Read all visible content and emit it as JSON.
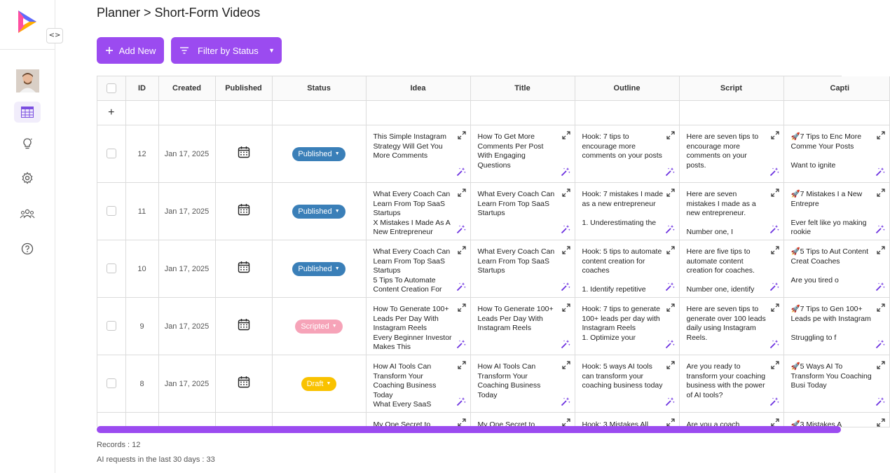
{
  "breadcrumb": "Planner > Short-Form Videos",
  "toolbar": {
    "add_label": "Add New",
    "filter_label": "Filter by Status"
  },
  "colors": {
    "accent": "#9b4bf0",
    "published": "#3a7fb8",
    "scripted": "#f6a3b8",
    "draft": "#f9c200"
  },
  "table": {
    "headers": [
      "ID",
      "Created",
      "Published",
      "Status",
      "Idea",
      "Title",
      "Outline",
      "Script",
      "Capti"
    ],
    "add_row_symbol": "+",
    "rows": [
      {
        "id": "12",
        "created": "Jan 17, 2025",
        "status": "Published",
        "idea": "This Simple Instagram Strategy Will Get You More Comments",
        "title": "How To Get More Comments Per Post With Engaging Questions",
        "outline": "Hook: 7 tips to encourage more comments on your posts",
        "script": "Here are seven tips to encourage more comments on your posts.",
        "caption": "🚀7 Tips to Enc More Comme Your Posts\n\nWant to ignite"
      },
      {
        "id": "11",
        "created": "Jan 17, 2025",
        "status": "Published",
        "idea": "What Every Coach Can Learn From Top SaaS Startups\nX Mistakes I Made As A New Entrepreneur",
        "title": "What Every Coach Can Learn From Top SaaS Startups",
        "outline": "Hook: 7 mistakes I made as a new entrepreneur\n\n1. Underestimating the",
        "script": "Here are seven mistakes I made as a new entrepreneur.\n\nNumber one, I",
        "caption": "🚀7 Mistakes I a New Entrepre\n\nEver felt like yo making rookie"
      },
      {
        "id": "10",
        "created": "Jan 17, 2025",
        "status": "Published",
        "idea": "What Every Coach Can Learn From Top SaaS Startups\n5 Tips To Automate Content Creation For",
        "title": "What Every Coach Can Learn From Top SaaS Startups",
        "outline": "Hook: 5 tips to automate content creation for coaches\n\n1. Identify repetitive",
        "script": "Here are five tips to automate content creation for coaches.\n\nNumber one, identify",
        "caption": "🚀5 Tips to Aut Content Creat Coaches\n\nAre you tired o"
      },
      {
        "id": "9",
        "created": "Jan 17, 2025",
        "status": "Scripted",
        "idea": "How To Generate 100+ Leads Per Day With Instagram Reels\nEvery Beginner Investor Makes This",
        "title": "How To Generate 100+ Leads Per Day With Instagram Reels",
        "outline": "Hook: 7 tips to generate 100+ leads per day with Instagram Reels\n1. Optimize your",
        "script": "Here are seven tips to generate over 100 leads daily using Instagram Reels.",
        "caption": "🚀7 Tips to Gen 100+ Leads pe with Instagram\n\nStruggling to f"
      },
      {
        "id": "8",
        "created": "Jan 17, 2025",
        "status": "Draft",
        "idea": "How AI Tools Can Transform Your Coaching Business Today\nWhat Every SaaS",
        "title": "How AI Tools Can Transform Your Coaching Business Today",
        "outline": "Hook: 5 ways AI tools can transform your coaching business today",
        "script": "Are you ready to transform your coaching business with the power of AI tools?",
        "caption": "🚀5 Ways AI To Transform You Coaching Busi Today"
      }
    ],
    "partial_row": {
      "idea": "My One Secret to",
      "title": "My One Secret to",
      "outline": "Hook: 3 Mistakes All",
      "script": "Are you a coach",
      "caption": "🚀3 Mistakes A"
    }
  },
  "footer": {
    "records": "Records : 12",
    "ai_requests": "AI requests in the last 30 days : 33"
  }
}
